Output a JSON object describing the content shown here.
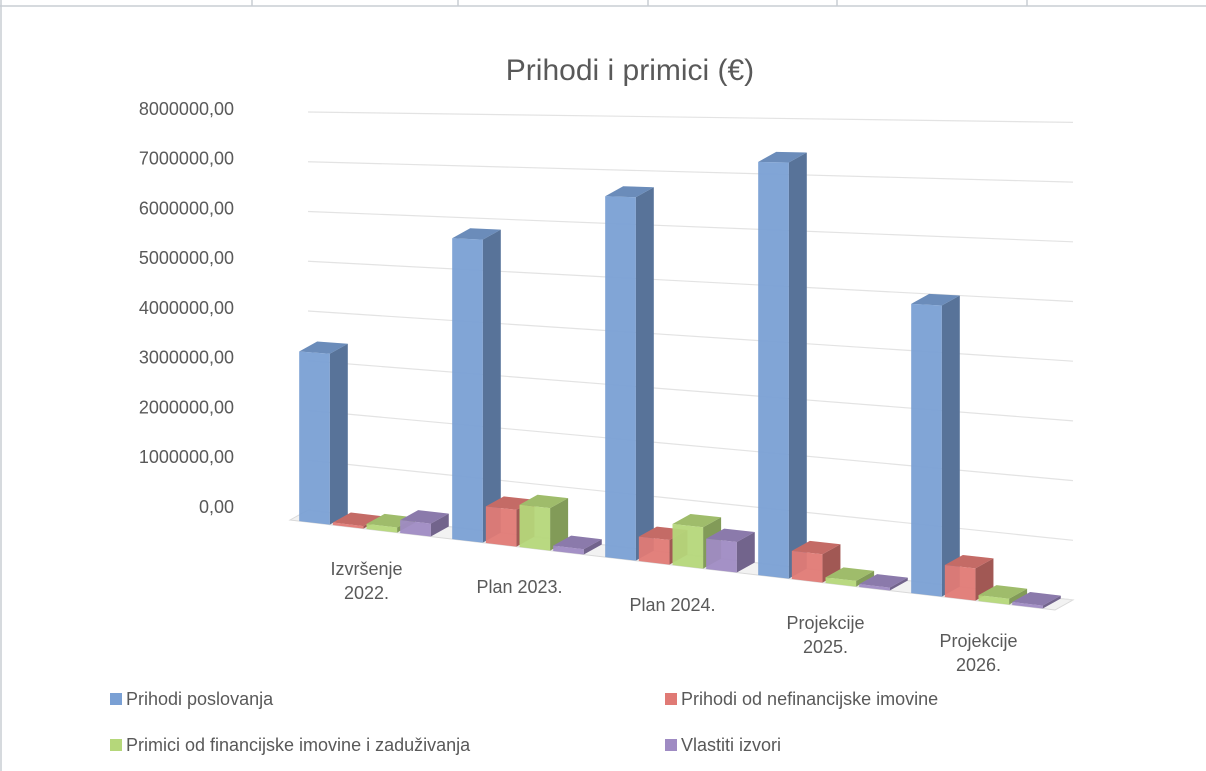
{
  "chart_data": {
    "type": "bar3d",
    "title": "Prihodi i primici (€)",
    "categories": [
      "Izvršenje 2022.",
      "Plan 2023.",
      "Plan 2024.",
      "Projekcije 2025.",
      "Projekcije 2026."
    ],
    "series": [
      {
        "name": "Prihodi poslovanja",
        "color": "#7aa0d4",
        "values": [
          3400000,
          5800000,
          6700000,
          7400000,
          5000000
        ]
      },
      {
        "name": "Prihodi od nefinancijske imovine",
        "color": "#e07a75",
        "values": [
          50000,
          700000,
          450000,
          500000,
          550000
        ]
      },
      {
        "name": "Primici od financijske imovine i zaduživanja",
        "color": "#b5d77a",
        "values": [
          100000,
          800000,
          750000,
          100000,
          100000
        ]
      },
      {
        "name": "Vlastiti izvori",
        "color": "#9f8bc3",
        "values": [
          250000,
          100000,
          550000,
          50000,
          50000
        ]
      }
    ],
    "ylim": [
      0,
      8000000
    ],
    "yticks": [
      {
        "value": 0,
        "label": "0,00"
      },
      {
        "value": 1000000,
        "label": "1000000,00"
      },
      {
        "value": 2000000,
        "label": "2000000,00"
      },
      {
        "value": 3000000,
        "label": "3000000,00"
      },
      {
        "value": 4000000,
        "label": "4000000,00"
      },
      {
        "value": 5000000,
        "label": "5000000,00"
      },
      {
        "value": 6000000,
        "label": "6000000,00"
      },
      {
        "value": 7000000,
        "label": "7000000,00"
      },
      {
        "value": 8000000,
        "label": "8000000,00"
      }
    ],
    "grid": true
  }
}
